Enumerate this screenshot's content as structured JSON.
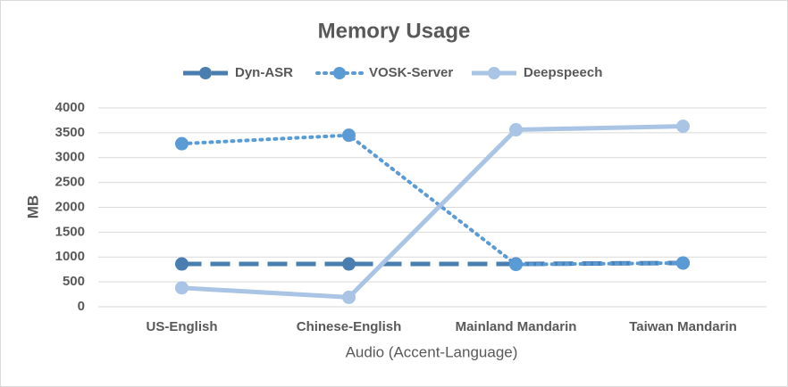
{
  "chart_data": {
    "type": "line",
    "title": "Memory Usage",
    "x_label": "Audio (Accent-Language)",
    "y_label": "MB",
    "categories": [
      "US-English",
      "Chinese-English",
      "Mainland Mandarin",
      "Taiwan Mandarin"
    ],
    "series": [
      {
        "name": "Dyn-ASR",
        "color": "#4a7db0",
        "line_style": "dash",
        "values": [
          860,
          860,
          860,
          880
        ]
      },
      {
        "name": "VOSK-Server",
        "color": "#5b9bd5",
        "line_style": "dot",
        "values": [
          3280,
          3450,
          850,
          880
        ]
      },
      {
        "name": "Deepspeech",
        "color": "#a9c4e4",
        "line_style": "solid",
        "values": [
          380,
          190,
          3560,
          3630
        ]
      }
    ],
    "ylim": [
      0,
      4000
    ],
    "yticks": [
      0,
      500,
      1000,
      1500,
      2000,
      2500,
      3000,
      3500,
      4000
    ],
    "grid": true,
    "legend": "top"
  }
}
